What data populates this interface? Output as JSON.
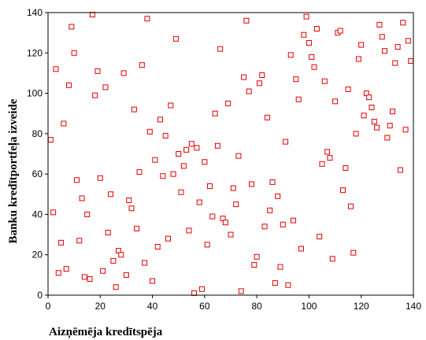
{
  "chart_data": {
    "type": "scatter",
    "title": "",
    "xlabel": "Aizņēmēja kredītspēja",
    "ylabel": "Banku kredītportfeļa izveide",
    "xlim": [
      0,
      140
    ],
    "ylim": [
      0,
      140
    ],
    "xticks": [
      0,
      20,
      40,
      60,
      80,
      100,
      120,
      140
    ],
    "yticks": [
      0,
      20,
      40,
      60,
      80,
      100,
      120,
      140
    ],
    "grid": false,
    "marker": "open-square",
    "marker_color": "#e00000",
    "points": [
      [
        1,
        77
      ],
      [
        2,
        41
      ],
      [
        3,
        112
      ],
      [
        4,
        11
      ],
      [
        5,
        26
      ],
      [
        6,
        85
      ],
      [
        7,
        13
      ],
      [
        8,
        104
      ],
      [
        9,
        133
      ],
      [
        10,
        120
      ],
      [
        11,
        57
      ],
      [
        12,
        27
      ],
      [
        13,
        48
      ],
      [
        14,
        9
      ],
      [
        15,
        40
      ],
      [
        16,
        8
      ],
      [
        17,
        139
      ],
      [
        18,
        99
      ],
      [
        19,
        111
      ],
      [
        20,
        58
      ],
      [
        21,
        12
      ],
      [
        22,
        103
      ],
      [
        23,
        31
      ],
      [
        24,
        50
      ],
      [
        25,
        17
      ],
      [
        26,
        4
      ],
      [
        27,
        22
      ],
      [
        28,
        20
      ],
      [
        29,
        110
      ],
      [
        30,
        10
      ],
      [
        31,
        47
      ],
      [
        32,
        43
      ],
      [
        33,
        92
      ],
      [
        34,
        33
      ],
      [
        35,
        61
      ],
      [
        36,
        114
      ],
      [
        37,
        16
      ],
      [
        38,
        137
      ],
      [
        39,
        81
      ],
      [
        40,
        7
      ],
      [
        41,
        67
      ],
      [
        42,
        24
      ],
      [
        43,
        87
      ],
      [
        44,
        59
      ],
      [
        45,
        79
      ],
      [
        46,
        28
      ],
      [
        47,
        94
      ],
      [
        48,
        60
      ],
      [
        49,
        127
      ],
      [
        50,
        70
      ],
      [
        51,
        51
      ],
      [
        52,
        64
      ],
      [
        53,
        72
      ],
      [
        54,
        32
      ],
      [
        55,
        75
      ],
      [
        56,
        1
      ],
      [
        57,
        73
      ],
      [
        58,
        46
      ],
      [
        59,
        3
      ],
      [
        60,
        66
      ],
      [
        61,
        25
      ],
      [
        62,
        54
      ],
      [
        63,
        39
      ],
      [
        64,
        90
      ],
      [
        65,
        74
      ],
      [
        66,
        122
      ],
      [
        67,
        38
      ],
      [
        68,
        36
      ],
      [
        69,
        95
      ],
      [
        70,
        30
      ],
      [
        71,
        53
      ],
      [
        72,
        45
      ],
      [
        73,
        69
      ],
      [
        74,
        2
      ],
      [
        75,
        108
      ],
      [
        76,
        136
      ],
      [
        77,
        101
      ],
      [
        78,
        55
      ],
      [
        79,
        15
      ],
      [
        80,
        19
      ],
      [
        81,
        105
      ],
      [
        82,
        109
      ],
      [
        83,
        34
      ],
      [
        84,
        88
      ],
      [
        85,
        42
      ],
      [
        86,
        56
      ],
      [
        87,
        6
      ],
      [
        88,
        49
      ],
      [
        89,
        14
      ],
      [
        90,
        35
      ],
      [
        91,
        76
      ],
      [
        92,
        5
      ],
      [
        93,
        119
      ],
      [
        94,
        37
      ],
      [
        95,
        107
      ],
      [
        96,
        97
      ],
      [
        97,
        23
      ],
      [
        98,
        129
      ],
      [
        99,
        138
      ],
      [
        100,
        125
      ],
      [
        101,
        118
      ],
      [
        102,
        113
      ],
      [
        103,
        132
      ],
      [
        104,
        29
      ],
      [
        105,
        65
      ],
      [
        106,
        106
      ],
      [
        107,
        71
      ],
      [
        108,
        68
      ],
      [
        109,
        18
      ],
      [
        110,
        96
      ],
      [
        111,
        130
      ],
      [
        112,
        131
      ],
      [
        113,
        52
      ],
      [
        114,
        63
      ],
      [
        115,
        102
      ],
      [
        116,
        44
      ],
      [
        117,
        21
      ],
      [
        118,
        80
      ],
      [
        119,
        117
      ],
      [
        120,
        124
      ],
      [
        121,
        89
      ],
      [
        122,
        100
      ],
      [
        123,
        98
      ],
      [
        124,
        93
      ],
      [
        125,
        86
      ],
      [
        126,
        83
      ],
      [
        127,
        134
      ],
      [
        128,
        128
      ],
      [
        129,
        121
      ],
      [
        130,
        78
      ],
      [
        131,
        84
      ],
      [
        132,
        91
      ],
      [
        133,
        115
      ],
      [
        134,
        123
      ],
      [
        135,
        62
      ],
      [
        136,
        135
      ],
      [
        137,
        82
      ],
      [
        138,
        126
      ],
      [
        139,
        116
      ]
    ]
  }
}
